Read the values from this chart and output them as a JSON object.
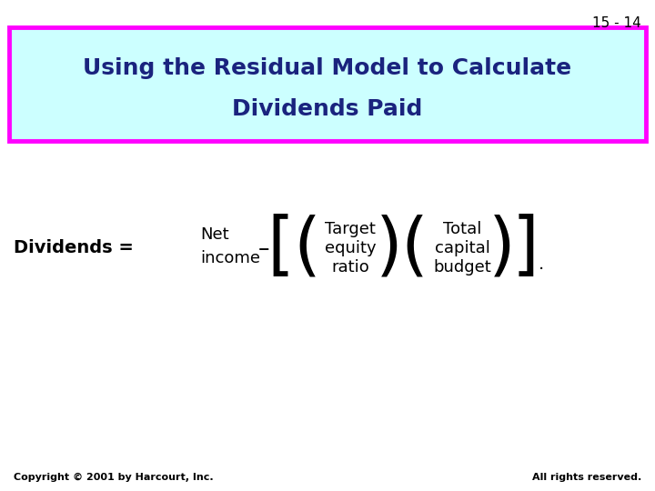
{
  "slide_number": "15 - 14",
  "title_line1": "Using the Residual Model to Calculate",
  "title_line2": "Dividends Paid",
  "title_bg_color": "#ccffff",
  "title_border_color": "#ff00ff",
  "title_text_color": "#1a237e",
  "bg_color": "#ffffff",
  "slide_num_color": "#000000",
  "formula_color": "#000000",
  "copyright_text": "Copyright © 2001 by Harcourt, Inc.",
  "rights_text": "All rights reserved.",
  "footer_color": "#000000"
}
